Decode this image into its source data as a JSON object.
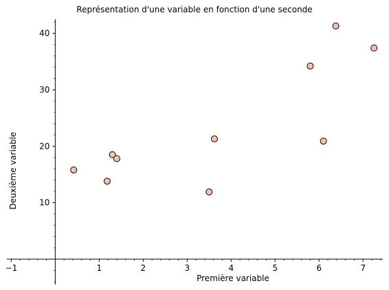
{
  "chart_data": {
    "type": "scatter",
    "title": "Représentation d'une variable en fonction d'une seconde",
    "xlabel": "Première variable",
    "ylabel": "Deuxième variable",
    "xlim": [
      -1.1,
      7.45
    ],
    "ylim": [
      -4.5,
      42.5
    ],
    "xticks": [
      -1,
      1,
      2,
      3,
      4,
      5,
      6,
      7
    ],
    "xtick_labels": [
      "−1",
      "1",
      "2",
      "3",
      "4",
      "5",
      "6",
      "7"
    ],
    "yticks": [
      10,
      20,
      30,
      40
    ],
    "ytick_labels": [
      "10",
      "20",
      "30",
      "40"
    ],
    "grid": false,
    "marker_color": "#f8c1ad",
    "marker_edge_color": "#000000",
    "points": [
      {
        "x": 0.42,
        "y": 15.8
      },
      {
        "x": 1.18,
        "y": 13.8
      },
      {
        "x": 1.3,
        "y": 18.5
      },
      {
        "x": 1.4,
        "y": 17.8
      },
      {
        "x": 3.5,
        "y": 11.9
      },
      {
        "x": 3.62,
        "y": 21.3
      },
      {
        "x": 5.8,
        "y": 34.2
      },
      {
        "x": 6.1,
        "y": 20.9
      },
      {
        "x": 6.38,
        "y": 41.3
      },
      {
        "x": 7.25,
        "y": 37.4
      }
    ]
  }
}
